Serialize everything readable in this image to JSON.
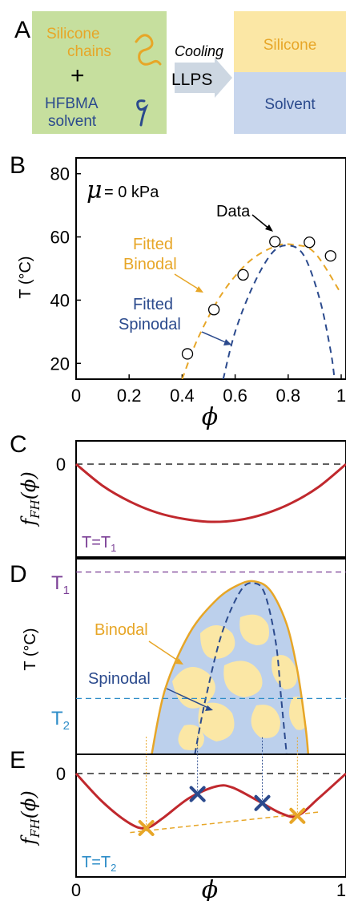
{
  "colors": {
    "silicone_box": "#c6df9e",
    "silicone_phase": "#fbe7a5",
    "solvent_phase": "#c8d6ed",
    "orange": "#e7a627",
    "blue": "#2b4a8d",
    "red": "#c0282d",
    "purple": "#7b3f96",
    "cyan": "#2e8dc8",
    "region_blue": "#bcd0ec",
    "region_yellow": "#fbe7a5"
  },
  "panelA": {
    "label": "A",
    "left_box": {
      "line1": "Silicone",
      "line2": "chains",
      "plus": "+",
      "line3": "HFBMA",
      "line4": "solvent"
    },
    "arrow_top": "Cooling",
    "arrow_bottom": "LLPS",
    "top_phase": "Silicone",
    "bottom_phase": "Solvent"
  },
  "panelB": {
    "label": "B",
    "mu_symbol": "μ",
    "mu_text": "= 0 kPa",
    "data_label": "Data",
    "binodal_line1": "Fitted",
    "binodal_line2": "Binodal",
    "spinodal_line1": "Fitted",
    "spinodal_line2": "Spinodal",
    "ylabel": "T (°C)",
    "xlabel": "ϕ",
    "x_ticks": [
      "0",
      "0.2",
      "0.4",
      "0.6",
      "0.8",
      "1"
    ],
    "y_ticks": [
      "20",
      "40",
      "60",
      "80"
    ]
  },
  "panelC": {
    "label": "C",
    "ylabel": "f_FH(ϕ)",
    "zero_tick": "0",
    "temp_label": "T=T",
    "temp_sub": "1"
  },
  "panelD": {
    "label": "D",
    "ylabel": "T (°C)",
    "t1_label": "T",
    "t1_sub": "1",
    "t2_label": "T",
    "t2_sub": "2",
    "binodal": "Binodal",
    "spinodal": "Spinodal"
  },
  "panelE": {
    "label": "E",
    "ylabel": "f_FH(ϕ)",
    "zero_tick": "0",
    "temp_label": "T=T",
    "temp_sub": "2",
    "x_ticks": [
      "0",
      "1"
    ],
    "xlabel": "ϕ"
  },
  "chart_data": [
    {
      "type": "scatter",
      "panel": "B",
      "xlim": [
        0,
        1
      ],
      "ylim": [
        15,
        85
      ],
      "x_ticks": [
        0,
        0.2,
        0.4,
        0.6,
        0.8,
        1
      ],
      "y_ticks": [
        20,
        40,
        60,
        80
      ],
      "xlabel": "ϕ",
      "ylabel": "T (°C)",
      "annotation": "μ = 0 kPa",
      "series": [
        {
          "name": "Data",
          "style": "markers",
          "points": [
            [
              0.42,
              23
            ],
            [
              0.52,
              37
            ],
            [
              0.63,
              48
            ],
            [
              0.75,
              58.5
            ],
            [
              0.88,
              58.3
            ],
            [
              0.96,
              54
            ]
          ]
        },
        {
          "name": "Fitted Binodal",
          "style": "dashed",
          "points": [
            [
              0.4,
              15
            ],
            [
              0.46,
              28
            ],
            [
              0.55,
              42
            ],
            [
              0.65,
              52
            ],
            [
              0.75,
              57
            ],
            [
              0.82,
              57.5
            ],
            [
              0.9,
              55
            ],
            [
              1.0,
              42
            ]
          ]
        },
        {
          "name": "Fitted Spinodal",
          "style": "dashed",
          "points": [
            [
              0.555,
              15
            ],
            [
              0.6,
              30
            ],
            [
              0.67,
              45
            ],
            [
              0.74,
              55
            ],
            [
              0.8,
              57.3
            ],
            [
              0.86,
              54
            ],
            [
              0.92,
              40
            ],
            [
              0.96,
              24
            ],
            [
              0.975,
              15
            ]
          ]
        }
      ]
    },
    {
      "type": "line",
      "panel": "C",
      "xlim": [
        0,
        1
      ],
      "ylim": [
        -1.1,
        0.3
      ],
      "series": [
        {
          "name": "T=T1",
          "points": [
            [
              0,
              0
            ],
            [
              0.1,
              -0.38
            ],
            [
              0.2,
              -0.65
            ],
            [
              0.3,
              -0.84
            ],
            [
              0.4,
              -0.95
            ],
            [
              0.5,
              -1.0
            ],
            [
              0.6,
              -0.97
            ],
            [
              0.7,
              -0.86
            ],
            [
              0.8,
              -0.67
            ],
            [
              0.9,
              -0.39
            ],
            [
              1,
              0
            ]
          ]
        }
      ]
    },
    {
      "type": "area",
      "panel": "D",
      "xlim": [
        0,
        1
      ],
      "ylim": [
        0,
        1.1
      ],
      "levels": {
        "T1": 0.98,
        "T2": 0.3
      },
      "series": [
        {
          "name": "Binodal",
          "points": [
            [
              0.28,
              0
            ],
            [
              0.33,
              0.35
            ],
            [
              0.42,
              0.65
            ],
            [
              0.52,
              0.83
            ],
            [
              0.6,
              0.91
            ],
            [
              0.66,
              0.93
            ],
            [
              0.72,
              0.88
            ],
            [
              0.78,
              0.7
            ],
            [
              0.82,
              0.45
            ],
            [
              0.85,
              0.15
            ],
            [
              0.86,
              0
            ]
          ]
        },
        {
          "name": "Spinodal",
          "points": [
            [
              0.44,
              0
            ],
            [
              0.48,
              0.3
            ],
            [
              0.54,
              0.65
            ],
            [
              0.61,
              0.88
            ],
            [
              0.66,
              0.92
            ],
            [
              0.7,
              0.86
            ],
            [
              0.74,
              0.6
            ],
            [
              0.76,
              0.3
            ],
            [
              0.78,
              0
            ]
          ]
        }
      ]
    },
    {
      "type": "line",
      "panel": "E",
      "xlim": [
        0,
        1
      ],
      "ylim": [
        -1.3,
        0.3
      ],
      "series": [
        {
          "name": "T=T2",
          "points": [
            [
              0,
              0
            ],
            [
              0.1,
              -0.45
            ],
            [
              0.2,
              -0.78
            ],
            [
              0.26,
              -0.85
            ],
            [
              0.32,
              -0.7
            ],
            [
              0.42,
              -0.38
            ],
            [
              0.52,
              -0.2
            ],
            [
              0.58,
              -0.22
            ],
            [
              0.68,
              -0.44
            ],
            [
              0.76,
              -0.62
            ],
            [
              0.82,
              -0.66
            ],
            [
              0.9,
              -0.38
            ],
            [
              1,
              0
            ]
          ]
        },
        {
          "name": "common tangent",
          "style": "dashed",
          "points": [
            [
              0.2,
              -0.92
            ],
            [
              0.9,
              -0.6
            ]
          ]
        }
      ],
      "binodal_points": [
        [
          0.26,
          -0.85
        ],
        [
          0.82,
          -0.66
        ]
      ],
      "spinodal_points": [
        [
          0.45,
          -0.32
        ],
        [
          0.69,
          -0.46
        ]
      ]
    }
  ]
}
